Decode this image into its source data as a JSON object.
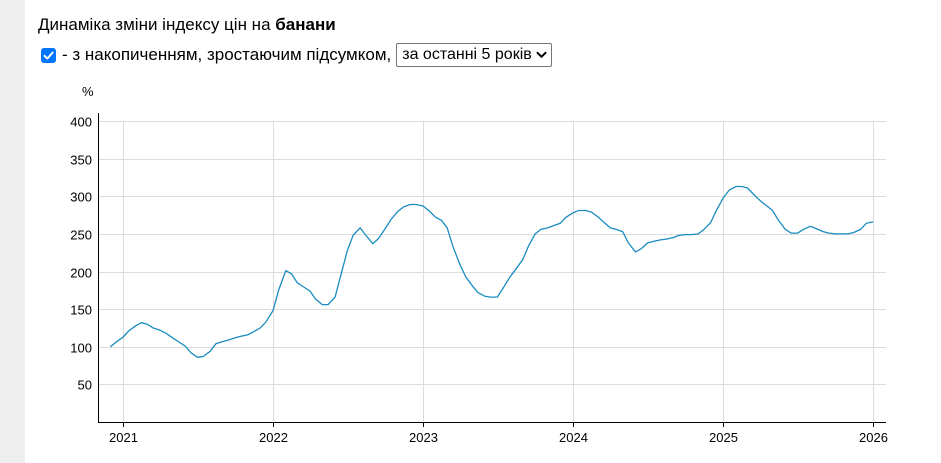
{
  "header": {
    "title_prefix": "Динаміка зміни індексу цін на",
    "title_product": "банани"
  },
  "controls": {
    "cumulative_checked": true,
    "cumulative_label": "- з накопиченням, зростаючим підсумком,",
    "period_selected": "за останні 5 років"
  },
  "colors": {
    "line": "#1a8cbf",
    "grid": "#dddddd",
    "checkbox": "#0075ff"
  },
  "chart_data": {
    "type": "line",
    "ylabel": "%",
    "xlabel": "",
    "ylim": [
      0,
      400
    ],
    "xlim": [
      "2020-11-01",
      "2026-02-01"
    ],
    "y_ticks": [
      50,
      100,
      150,
      200,
      250,
      300,
      350,
      400
    ],
    "x_ticks": [
      "2021",
      "2022",
      "2023",
      "2024",
      "2025",
      "2026"
    ],
    "grid": true,
    "series": [
      {
        "points": [
          [
            "2020-12-01",
            100
          ],
          [
            "2020-12-15",
            106
          ],
          [
            "2021-01-01",
            113
          ],
          [
            "2021-01-15",
            121
          ],
          [
            "2021-02-01",
            128
          ],
          [
            "2021-02-15",
            132
          ],
          [
            "2021-03-01",
            130
          ],
          [
            "2021-03-15",
            125
          ],
          [
            "2021-04-01",
            122
          ],
          [
            "2021-04-15",
            118
          ],
          [
            "2021-05-01",
            112
          ],
          [
            "2021-05-15",
            107
          ],
          [
            "2021-06-01",
            101
          ],
          [
            "2021-06-15",
            92
          ],
          [
            "2021-07-01",
            86
          ],
          [
            "2021-07-15",
            87
          ],
          [
            "2021-08-01",
            94
          ],
          [
            "2021-08-15",
            104
          ],
          [
            "2021-09-01",
            107
          ],
          [
            "2021-09-15",
            109
          ],
          [
            "2021-10-01",
            112
          ],
          [
            "2021-10-15",
            114
          ],
          [
            "2021-11-01",
            116
          ],
          [
            "2021-11-15",
            120
          ],
          [
            "2021-12-01",
            125
          ],
          [
            "2021-12-15",
            133
          ],
          [
            "2022-01-01",
            148
          ],
          [
            "2022-01-15",
            176
          ],
          [
            "2022-02-01",
            201
          ],
          [
            "2022-02-15",
            197
          ],
          [
            "2022-03-01",
            185
          ],
          [
            "2022-03-15",
            180
          ],
          [
            "2022-04-01",
            174
          ],
          [
            "2022-04-15",
            163
          ],
          [
            "2022-05-01",
            156
          ],
          [
            "2022-05-15",
            156
          ],
          [
            "2022-06-01",
            166
          ],
          [
            "2022-06-15",
            195
          ],
          [
            "2022-07-01",
            228
          ],
          [
            "2022-07-15",
            248
          ],
          [
            "2022-08-01",
            258
          ],
          [
            "2022-08-15",
            248
          ],
          [
            "2022-09-01",
            237
          ],
          [
            "2022-09-15",
            244
          ],
          [
            "2022-10-01",
            257
          ],
          [
            "2022-10-15",
            269
          ],
          [
            "2022-11-01",
            280
          ],
          [
            "2022-11-15",
            286
          ],
          [
            "2022-12-01",
            289
          ],
          [
            "2022-12-15",
            289
          ],
          [
            "2023-01-01",
            287
          ],
          [
            "2023-01-15",
            281
          ],
          [
            "2023-02-01",
            272
          ],
          [
            "2023-02-15",
            268
          ],
          [
            "2023-03-01",
            258
          ],
          [
            "2023-03-15",
            233
          ],
          [
            "2023-04-01",
            209
          ],
          [
            "2023-04-15",
            193
          ],
          [
            "2023-05-01",
            181
          ],
          [
            "2023-05-15",
            172
          ],
          [
            "2023-06-01",
            167
          ],
          [
            "2023-06-15",
            166
          ],
          [
            "2023-07-01",
            166
          ],
          [
            "2023-07-15",
            178
          ],
          [
            "2023-08-01",
            193
          ],
          [
            "2023-08-15",
            203
          ],
          [
            "2023-09-01",
            216
          ],
          [
            "2023-09-15",
            234
          ],
          [
            "2023-10-01",
            250
          ],
          [
            "2023-10-15",
            256
          ],
          [
            "2023-11-01",
            258
          ],
          [
            "2023-11-15",
            261
          ],
          [
            "2023-12-01",
            264
          ],
          [
            "2023-12-15",
            272
          ],
          [
            "2024-01-01",
            278
          ],
          [
            "2024-01-15",
            281
          ],
          [
            "2024-02-01",
            281
          ],
          [
            "2024-02-15",
            279
          ],
          [
            "2024-03-01",
            273
          ],
          [
            "2024-03-15",
            266
          ],
          [
            "2024-04-01",
            258
          ],
          [
            "2024-04-15",
            256
          ],
          [
            "2024-05-01",
            253
          ],
          [
            "2024-05-15",
            238
          ],
          [
            "2024-06-01",
            226
          ],
          [
            "2024-06-15",
            230
          ],
          [
            "2024-07-01",
            238
          ],
          [
            "2024-07-15",
            240
          ],
          [
            "2024-08-01",
            242
          ],
          [
            "2024-08-15",
            243
          ],
          [
            "2024-09-01",
            245
          ],
          [
            "2024-09-15",
            248
          ],
          [
            "2024-10-01",
            249
          ],
          [
            "2024-10-15",
            249
          ],
          [
            "2024-11-01",
            250
          ],
          [
            "2024-11-15",
            256
          ],
          [
            "2024-12-01",
            265
          ],
          [
            "2024-12-15",
            281
          ],
          [
            "2025-01-01",
            298
          ],
          [
            "2025-01-15",
            308
          ],
          [
            "2025-02-01",
            313
          ],
          [
            "2025-02-15",
            313
          ],
          [
            "2025-03-01",
            311
          ],
          [
            "2025-03-15",
            303
          ],
          [
            "2025-04-01",
            294
          ],
          [
            "2025-04-15",
            288
          ],
          [
            "2025-05-01",
            281
          ],
          [
            "2025-05-15",
            268
          ],
          [
            "2025-06-01",
            256
          ],
          [
            "2025-06-15",
            251
          ],
          [
            "2025-07-01",
            251
          ],
          [
            "2025-07-15",
            256
          ],
          [
            "2025-08-01",
            260
          ],
          [
            "2025-08-15",
            257
          ],
          [
            "2025-09-01",
            253
          ],
          [
            "2025-09-15",
            251
          ],
          [
            "2025-10-01",
            250
          ],
          [
            "2025-10-15",
            250
          ],
          [
            "2025-11-01",
            250
          ],
          [
            "2025-11-15",
            252
          ],
          [
            "2025-12-01",
            256
          ],
          [
            "2025-12-15",
            264
          ],
          [
            "2026-01-01",
            266
          ]
        ]
      }
    ]
  }
}
